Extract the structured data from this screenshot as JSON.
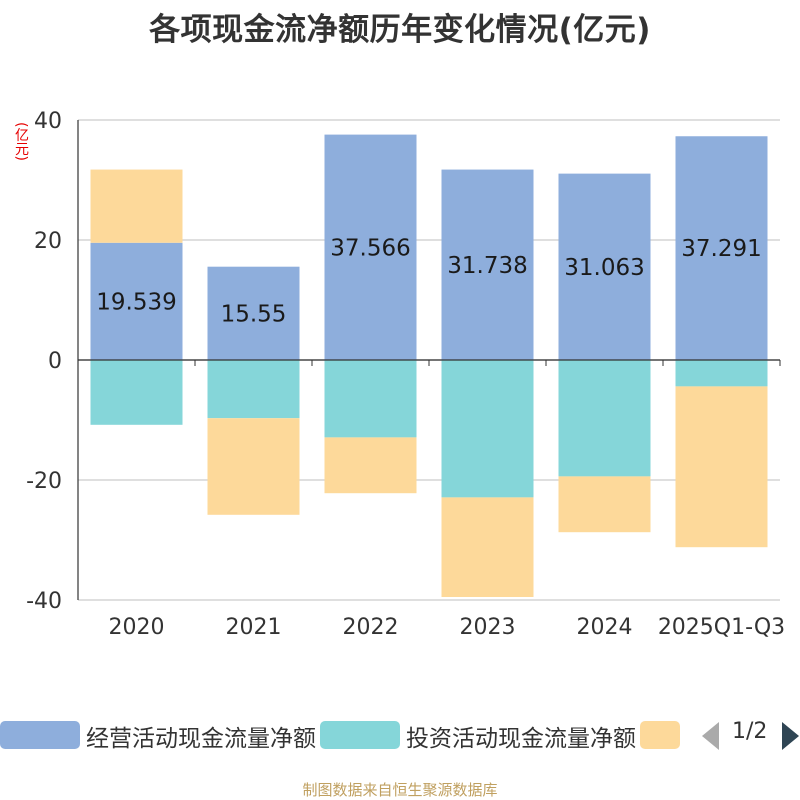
{
  "chart_data": {
    "type": "bar",
    "stacked": true,
    "title": "各项现金流净额历年变化情况(亿元)",
    "ylabel": "(亿元)",
    "ylim": [
      -40,
      40
    ],
    "yticks": [
      40,
      20,
      0,
      -20,
      -40
    ],
    "categories": [
      "2020",
      "2021",
      "2022",
      "2023",
      "2024",
      "2025Q1-Q3"
    ],
    "series": [
      {
        "name": "经营活动现金流量净额",
        "color": "#8eaedc",
        "values": [
          19.539,
          15.55,
          37.566,
          31.738,
          31.063,
          37.291
        ]
      },
      {
        "name": "投资活动现金流量净额",
        "color": "#85d6d9",
        "values": [
          -10.8,
          -9.7,
          -12.9,
          -22.9,
          -19.4,
          -4.4
        ]
      },
      {
        "name": "",
        "color": "#fdd99a",
        "values": [
          12.2,
          -16.1,
          -9.3,
          -16.6,
          -9.3,
          -26.8
        ]
      }
    ],
    "data_labels": [
      "19.539",
      "15.55",
      "37.566",
      "31.738",
      "31.063",
      "37.291"
    ],
    "legend": {
      "page": "1/2",
      "position": "bottom"
    },
    "grid": true
  },
  "source_note": "制图数据来自恒生聚源数据库"
}
